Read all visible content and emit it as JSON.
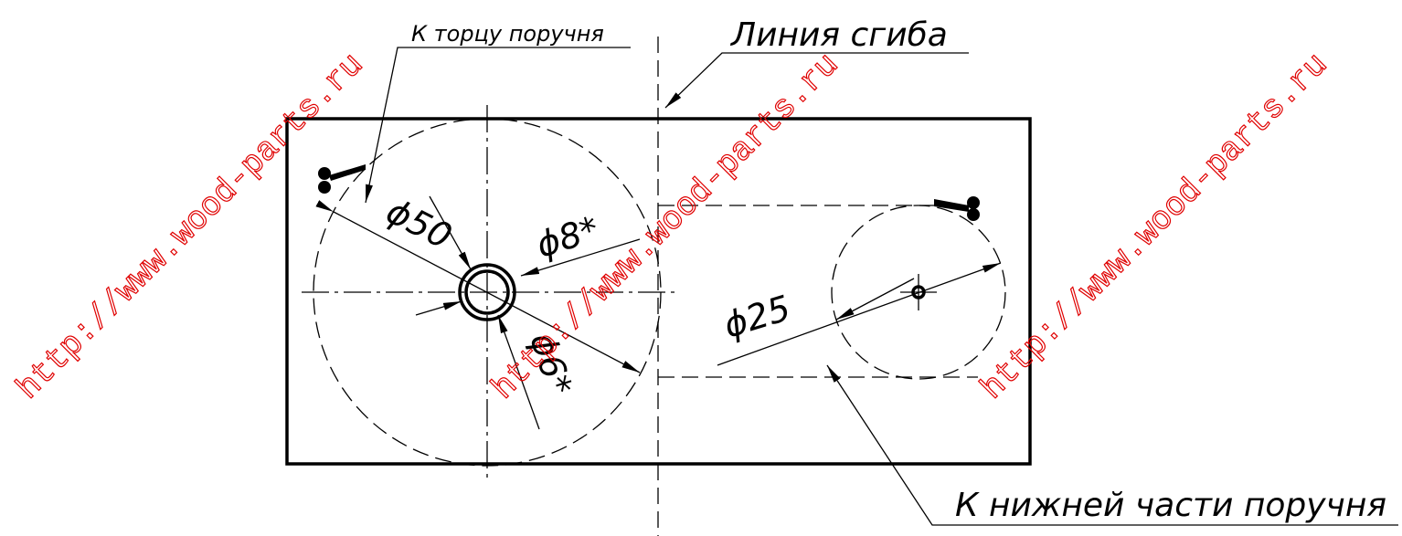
{
  "labels": {
    "to_end": "К торцу поручня",
    "fold_line": "Линия сгиба",
    "d50": "ϕ50",
    "d8": "ϕ8*",
    "d6": "ϕ6*",
    "d25": "ϕ25",
    "to_bottom": "К нижней части поручня"
  },
  "watermarks": [
    "http://www.wood-parts.ru",
    "http://www.wood-parts.ru",
    "http://www.wood-parts.ru"
  ]
}
